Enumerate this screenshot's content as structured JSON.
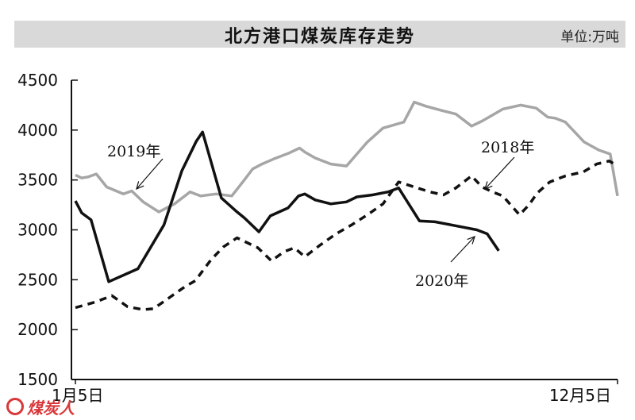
{
  "chart_data": {
    "type": "line",
    "title": "北方港口煤炭库存走势",
    "unit": "单位:万吨",
    "ylim": [
      1500,
      4500
    ],
    "yticks": [
      1500,
      2000,
      2500,
      3000,
      3500,
      4000,
      4500
    ],
    "ytick_labels": [
      "1500",
      "2000",
      "2500",
      "3000",
      "3500",
      "4000",
      "4500"
    ],
    "x_range": [
      0,
      52
    ],
    "xtick_labels": [
      {
        "x": 0,
        "label": "1月5日"
      },
      {
        "x": 52,
        "label": "12月5日"
      }
    ],
    "series": [
      {
        "name": "2019年",
        "style": "solid",
        "color": "#a6a6a6",
        "x": [
          0,
          0.6,
          1.2,
          2,
          3,
          4.6,
          5.4,
          6.5,
          8,
          9.5,
          11,
          12,
          13.5,
          15,
          16.2,
          17,
          17.9,
          19,
          20.5,
          21.5,
          22,
          23,
          24.5,
          26,
          27,
          28,
          29.5,
          31.5,
          32.5,
          33.6,
          35,
          36.5,
          38,
          39,
          40,
          41,
          42.7,
          44.2,
          45.3,
          46,
          47,
          48.8,
          50.2,
          51.3,
          52
        ],
        "values": [
          3550,
          3520,
          3530,
          3560,
          3430,
          3360,
          3390,
          3280,
          3180,
          3260,
          3380,
          3340,
          3360,
          3340,
          3500,
          3610,
          3660,
          3710,
          3770,
          3820,
          3780,
          3720,
          3660,
          3640,
          3760,
          3880,
          4020,
          4080,
          4280,
          4240,
          4200,
          4160,
          4040,
          4090,
          4150,
          4210,
          4250,
          4220,
          4130,
          4120,
          4080,
          3880,
          3800,
          3760,
          3340
        ]
      },
      {
        "name": "2020年",
        "style": "solid",
        "color": "#111111",
        "x": [
          0,
          0.6,
          1.5,
          3.2,
          6,
          8.5,
          10.2,
          11.6,
          12.2,
          14,
          15.5,
          16.2,
          17.6,
          18.7,
          20.4,
          21.4,
          22,
          23,
          24.5,
          26,
          27,
          28.5,
          30,
          31,
          33,
          34.5,
          37,
          38.5,
          39.5,
          40.6
        ],
        "values": [
          3290,
          3170,
          3100,
          2480,
          2610,
          3050,
          3590,
          3890,
          3980,
          3320,
          3180,
          3120,
          2980,
          3140,
          3220,
          3340,
          3360,
          3300,
          3260,
          3280,
          3330,
          3350,
          3380,
          3420,
          3090,
          3080,
          3030,
          3000,
          2960,
          2790
        ]
      },
      {
        "name": "2018年",
        "style": "dashed",
        "color": "#111111",
        "x": [
          0,
          1,
          2,
          3.5,
          5,
          6.5,
          7.5,
          9,
          10.5,
          11.5,
          13,
          14.2,
          15.5,
          17.5,
          18.8,
          20,
          21,
          22,
          23.5,
          25,
          26.5,
          28,
          29.5,
          31,
          32.5,
          34,
          35.3,
          36.5,
          38,
          39,
          40,
          41,
          42.6,
          43.5,
          44.3,
          45.5,
          47,
          48.7,
          50,
          51.2,
          52
        ],
        "values": [
          2220,
          2250,
          2280,
          2340,
          2230,
          2200,
          2210,
          2320,
          2430,
          2490,
          2700,
          2830,
          2920,
          2820,
          2690,
          2780,
          2820,
          2730,
          2850,
          2960,
          3050,
          3150,
          3260,
          3480,
          3430,
          3380,
          3350,
          3420,
          3540,
          3430,
          3380,
          3340,
          3150,
          3250,
          3370,
          3480,
          3540,
          3580,
          3660,
          3690,
          3640
        ]
      }
    ],
    "annotations": [
      {
        "text": "2019年",
        "series": "2019年"
      },
      {
        "text": "2018年",
        "series": "2018年"
      },
      {
        "text": "2020年",
        "series": "2020年"
      }
    ]
  },
  "watermark": {
    "text": "煤炭人"
  }
}
